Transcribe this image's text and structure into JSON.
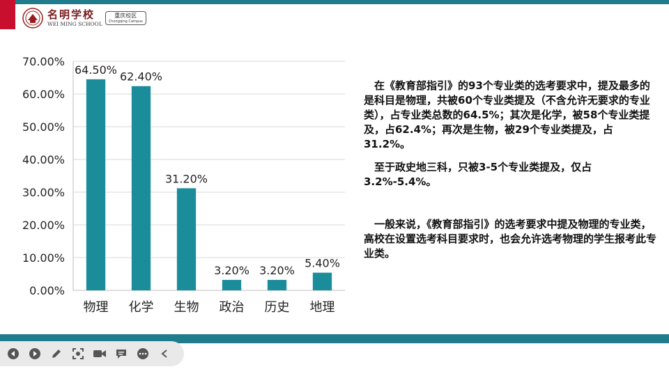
{
  "header": {
    "logo_cn": "名明学校",
    "logo_en": "WEI MING SCHOOL",
    "campus_cn": "重庆校区",
    "campus_en": "Chongqing Campus"
  },
  "chart_data": {
    "type": "bar",
    "categories": [
      "物理",
      "化学",
      "生物",
      "政治",
      "历史",
      "地理"
    ],
    "values": [
      64.5,
      62.4,
      31.2,
      3.2,
      3.2,
      5.4
    ],
    "data_labels": [
      "64.50%",
      "62.40%",
      "31.20%",
      "3.20%",
      "3.20%",
      "5.40%"
    ],
    "yticks": [
      "0.00%",
      "10.00%",
      "20.00%",
      "30.00%",
      "40.00%",
      "50.00%",
      "60.00%",
      "70.00%"
    ],
    "ylim": [
      0,
      70
    ],
    "grid": true,
    "bar_color": "#1b8c9a",
    "title": "",
    "xlabel": "",
    "ylabel": ""
  },
  "text": {
    "p1": "在《教育部指引》的93个专业类的选考要求中，提及最多的是科目是物理，共被60个专业类提及（不含允许无要求的专业类），占专业类总数的64.5%；其次是化学，被58个专业类提及，占62.4%；再次是生物，被29个专业类提及，占31.2%。",
    "p2": "至于政史地三科，只被3-5个专业类提及，仅占3.2%-5.4%。",
    "p3": "一般来说，《教育部指引》的选考要求中提及物理的专业类，高校在设置选考科目要求时，也会允许选考物理的学生报考此专业类。"
  },
  "colors": {
    "accent": "#1f7c8c",
    "brand_red": "#c8102e",
    "bar": "#1b8c9a"
  },
  "toolbar": {
    "icons": [
      "prev-icon",
      "next-icon",
      "pen-icon",
      "screenshot-icon",
      "camera-icon",
      "comment-icon",
      "more-icon",
      "collapse-icon"
    ]
  }
}
